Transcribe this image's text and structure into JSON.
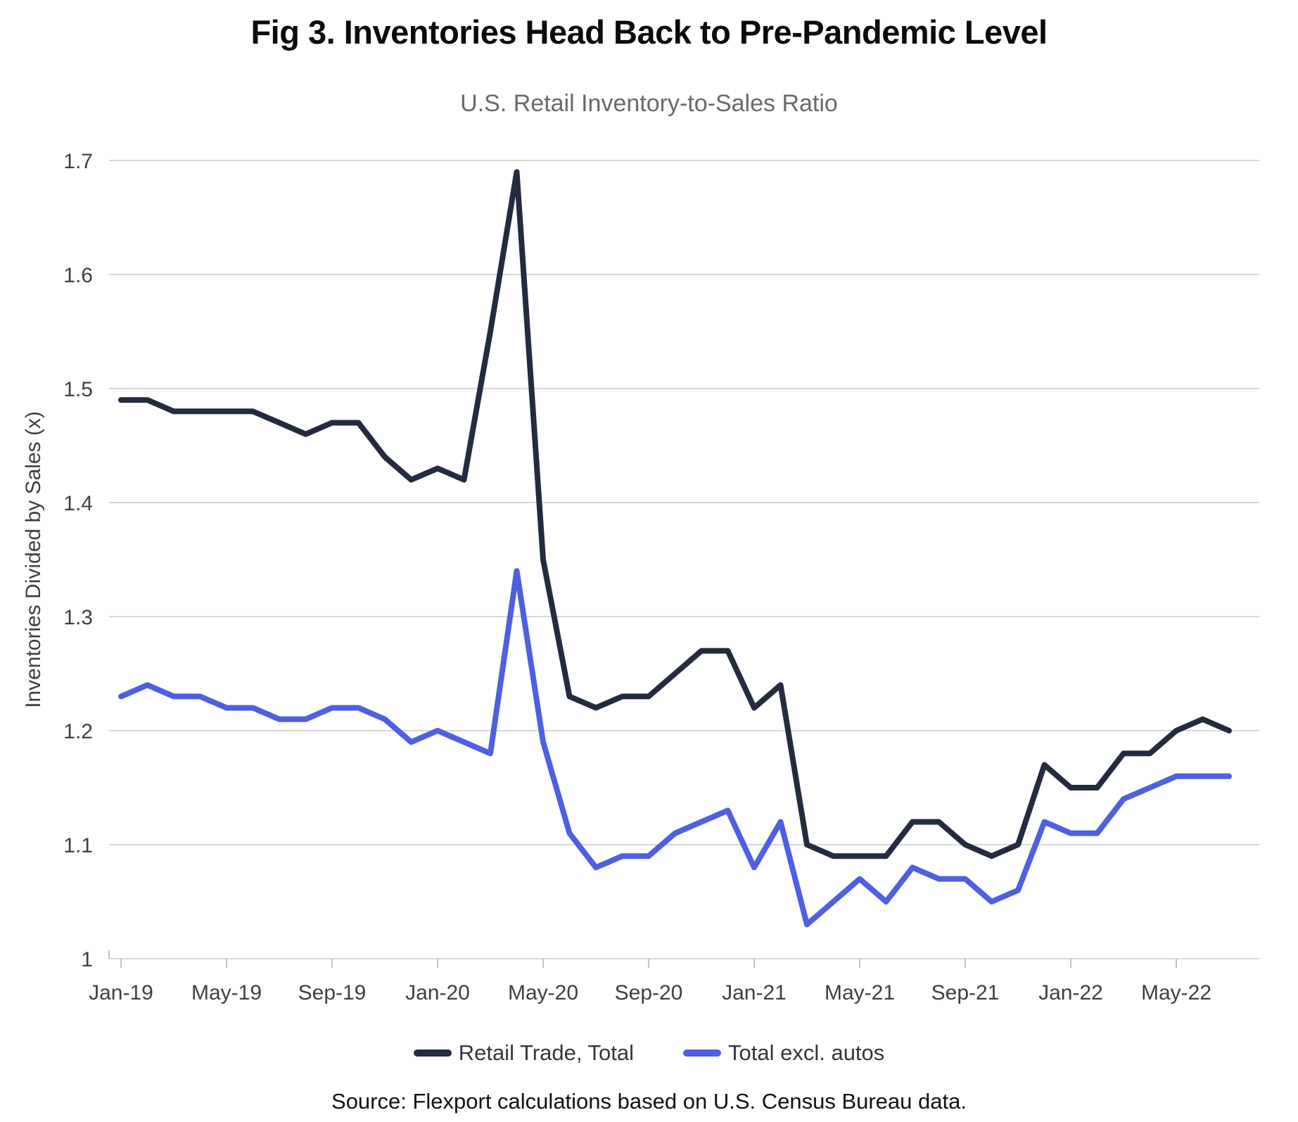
{
  "header": {
    "title": "Fig 3. Inventories Head Back to Pre-Pandemic Level"
  },
  "source_note": "Source: Flexport calculations based on U.S. Census Bureau data.",
  "chart_data": {
    "type": "line",
    "title": "U.S. Retail Inventory-to-Sales Ratio",
    "xlabel": "",
    "ylabel": "Inventories Divided by Sales (x)",
    "ylim": [
      1.0,
      1.7
    ],
    "yticks": [
      1,
      1.1,
      1.2,
      1.3,
      1.4,
      1.5,
      1.6,
      1.7
    ],
    "ytick_labels": [
      "1",
      "1.1",
      "1.2",
      "1.3",
      "1.4",
      "1.5",
      "1.6",
      "1.7"
    ],
    "grid": "horizontal",
    "gridline_color": "#d9d9d9",
    "axis_text_color": "#3c4043",
    "legend_position": "bottom",
    "x": [
      "Jan-19",
      "Feb-19",
      "Mar-19",
      "Apr-19",
      "May-19",
      "Jun-19",
      "Jul-19",
      "Aug-19",
      "Sep-19",
      "Oct-19",
      "Nov-19",
      "Dec-19",
      "Jan-20",
      "Feb-20",
      "Mar-20",
      "Apr-20",
      "May-20",
      "Jun-20",
      "Jul-20",
      "Aug-20",
      "Sep-20",
      "Oct-20",
      "Nov-20",
      "Dec-20",
      "Jan-21",
      "Feb-21",
      "Mar-21",
      "Apr-21",
      "May-21",
      "Jun-21",
      "Jul-21",
      "Aug-21",
      "Sep-21",
      "Oct-21",
      "Nov-21",
      "Dec-21",
      "Jan-22",
      "Feb-22",
      "Mar-22",
      "Apr-22",
      "May-22",
      "Jun-22",
      "Jul-22"
    ],
    "xtick_every": 4,
    "xtick_labels": [
      "Jan-19",
      "May-19",
      "Sep-19",
      "Jan-20",
      "May-20",
      "Sep-20",
      "Jan-21",
      "May-21",
      "Sep-21",
      "Jan-22",
      "May-22"
    ],
    "series": [
      {
        "name": "Retail Trade, Total",
        "color": "#242B3E",
        "values": [
          1.49,
          1.49,
          1.48,
          1.48,
          1.48,
          1.48,
          1.47,
          1.46,
          1.47,
          1.47,
          1.44,
          1.42,
          1.43,
          1.42,
          1.55,
          1.69,
          1.35,
          1.23,
          1.22,
          1.23,
          1.23,
          1.25,
          1.27,
          1.27,
          1.22,
          1.24,
          1.1,
          1.09,
          1.09,
          1.09,
          1.12,
          1.12,
          1.1,
          1.09,
          1.1,
          1.17,
          1.15,
          1.15,
          1.18,
          1.18,
          1.2,
          1.21,
          1.2
        ]
      },
      {
        "name": "Total excl. autos",
        "color": "#4F5FE1",
        "values": [
          1.23,
          1.24,
          1.23,
          1.23,
          1.22,
          1.22,
          1.21,
          1.21,
          1.22,
          1.22,
          1.21,
          1.19,
          1.2,
          1.19,
          1.18,
          1.34,
          1.19,
          1.11,
          1.08,
          1.09,
          1.09,
          1.11,
          1.12,
          1.13,
          1.08,
          1.12,
          1.03,
          1.05,
          1.07,
          1.05,
          1.08,
          1.07,
          1.07,
          1.05,
          1.06,
          1.12,
          1.11,
          1.11,
          1.14,
          1.15,
          1.16,
          1.16,
          1.16
        ]
      }
    ]
  }
}
